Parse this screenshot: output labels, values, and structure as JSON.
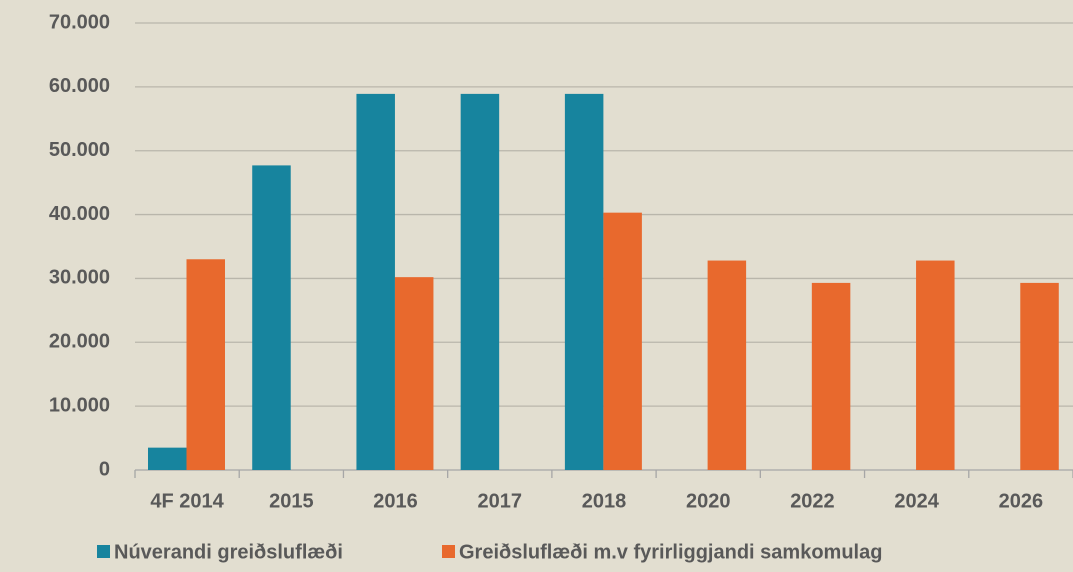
{
  "chart_data": {
    "type": "bar",
    "categories": [
      "4F 2014",
      "2015",
      "2016",
      "2017",
      "2018",
      "2020",
      "2022",
      "2024",
      "2026"
    ],
    "series": [
      {
        "name": "Núverandi greiðsluflæði",
        "color": "#17849e",
        "values": [
          3500,
          47700,
          58900,
          58900,
          58900,
          null,
          null,
          null,
          null
        ]
      },
      {
        "name": "Greiðsluflæði m.v fyrirliggjandi samkomulag",
        "color": "#e8692d",
        "values": [
          33000,
          null,
          30200,
          null,
          40300,
          32800,
          29300,
          32800,
          29300
        ]
      }
    ],
    "ylim": [
      0,
      70000
    ],
    "yticks": [
      0,
      {
        "value": 10000,
        "label": "10.000"
      },
      {
        "value": 20000,
        "label": "20.000"
      },
      {
        "value": 30000,
        "label": "30.000"
      },
      {
        "value": 40000,
        "label": "40.000"
      },
      {
        "value": 50000,
        "label": "50.000"
      },
      {
        "value": 60000,
        "label": "60.000"
      },
      {
        "value": 70000,
        "label": "70.000"
      }
    ],
    "grid": true
  }
}
